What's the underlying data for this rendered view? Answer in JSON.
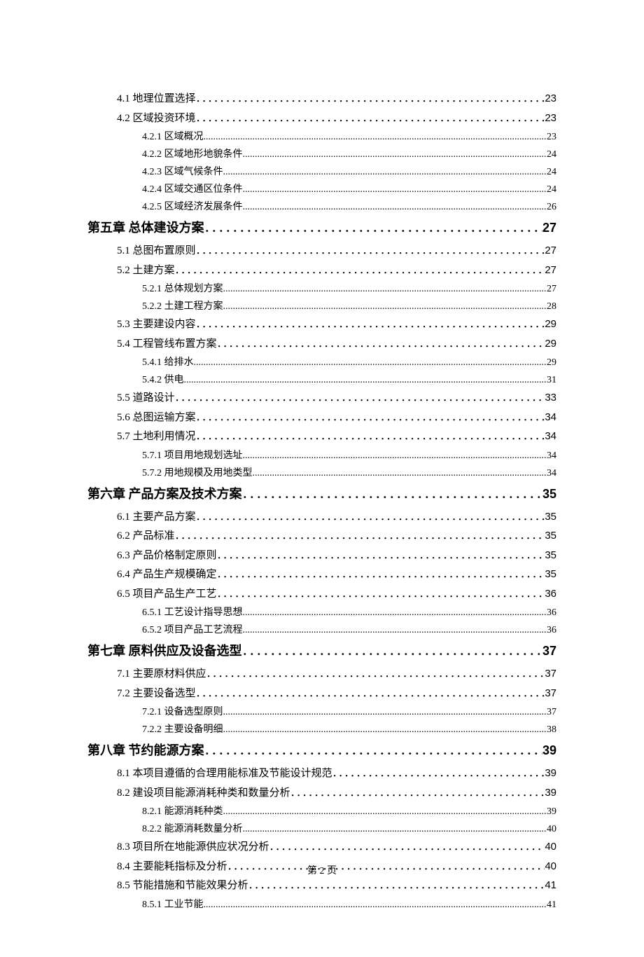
{
  "toc": [
    {
      "level": "section",
      "label": "4.1 地理位置选择",
      "page": "23"
    },
    {
      "level": "section",
      "label": "4.2 区域投资环境",
      "page": "23"
    },
    {
      "level": "subsection",
      "label": "4.2.1 区域概况",
      "page": "23"
    },
    {
      "level": "subsection",
      "label": "4.2.2 区域地形地貌条件",
      "page": "24"
    },
    {
      "level": "subsection",
      "label": "4.2.3 区域气候条件",
      "page": "24"
    },
    {
      "level": "subsection",
      "label": "4.2.4 区域交通区位条件",
      "page": "24"
    },
    {
      "level": "subsection",
      "label": "4.2.5 区域经济发展条件",
      "page": "26"
    },
    {
      "level": "chapter",
      "label": "第五章 总体建设方案",
      "page": "27"
    },
    {
      "level": "section",
      "label": "5.1 总图布置原则",
      "page": "27"
    },
    {
      "level": "section",
      "label": "5.2 土建方案",
      "page": "27"
    },
    {
      "level": "subsection",
      "label": "5.2.1 总体规划方案",
      "page": "27"
    },
    {
      "level": "subsection",
      "label": "5.2.2 土建工程方案",
      "page": "28"
    },
    {
      "level": "section",
      "label": "5.3 主要建设内容",
      "page": "29"
    },
    {
      "level": "section",
      "label": "5.4 工程管线布置方案",
      "page": "29"
    },
    {
      "level": "subsection",
      "label": "5.4.1 给排水",
      "page": "29"
    },
    {
      "level": "subsection",
      "label": "5.4.2 供电",
      "page": "31"
    },
    {
      "level": "section",
      "label": "5.5 道路设计",
      "page": "33"
    },
    {
      "level": "section",
      "label": "5.6 总图运输方案",
      "page": "34"
    },
    {
      "level": "section",
      "label": "5.7 土地利用情况",
      "page": "34"
    },
    {
      "level": "subsection",
      "label": "5.7.1 项目用地规划选址",
      "page": "34"
    },
    {
      "level": "subsection",
      "label": "5.7.2 用地规模及用地类型",
      "page": "34"
    },
    {
      "level": "chapter",
      "label": "第六章 产品方案及技术方案",
      "page": "35"
    },
    {
      "level": "section",
      "label": "6.1 主要产品方案",
      "page": "35"
    },
    {
      "level": "section",
      "label": "6.2 产品标准",
      "page": "35"
    },
    {
      "level": "section",
      "label": "6.3 产品价格制定原则",
      "page": "35"
    },
    {
      "level": "section",
      "label": "6.4 产品生产规模确定",
      "page": "35"
    },
    {
      "level": "section",
      "label": "6.5 项目产品生产工艺",
      "page": "36"
    },
    {
      "level": "subsection",
      "label": "6.5.1 工艺设计指导思想",
      "page": "36"
    },
    {
      "level": "subsection",
      "label": "6.5.2 项目产品工艺流程",
      "page": "36"
    },
    {
      "level": "chapter",
      "label": "第七章 原料供应及设备选型",
      "page": "37"
    },
    {
      "level": "section",
      "label": "7.1 主要原材料供应",
      "page": "37"
    },
    {
      "level": "section",
      "label": "7.2 主要设备选型",
      "page": "37"
    },
    {
      "level": "subsection",
      "label": "7.2.1 设备选型原则",
      "page": "37"
    },
    {
      "level": "subsection",
      "label": "7.2.2 主要设备明细",
      "page": "38"
    },
    {
      "level": "chapter",
      "label": "第八章 节约能源方案",
      "page": "39"
    },
    {
      "level": "section",
      "label": "8.1 本项目遵循的合理用能标准及节能设计规范",
      "page": "39"
    },
    {
      "level": "section",
      "label": "8.2 建设项目能源消耗种类和数量分析",
      "page": "39"
    },
    {
      "level": "subsection",
      "label": "8.2.1 能源消耗种类",
      "page": "39"
    },
    {
      "level": "subsection",
      "label": "8.2.2 能源消耗数量分析",
      "page": "40"
    },
    {
      "level": "section",
      "label": "8.3 项目所在地能源供应状况分析",
      "page": "40"
    },
    {
      "level": "section",
      "label": "8.4 主要能耗指标及分析",
      "page": "40"
    },
    {
      "level": "section",
      "label": "8.5 节能措施和节能效果分析",
      "page": "41"
    },
    {
      "level": "subsection",
      "label": "8.5.1 工业节能",
      "page": "41"
    }
  ],
  "footer": "第 2 页"
}
